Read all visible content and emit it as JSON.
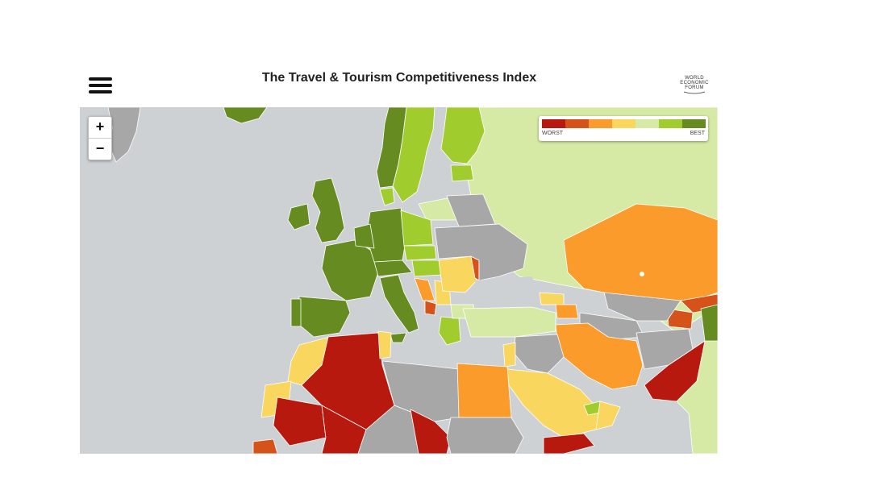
{
  "header": {
    "title": "The Travel & Tourism Competitiveness Index",
    "logo_lines": [
      "WORLD",
      "ECONOMIC",
      "FORUM"
    ]
  },
  "zoom": {
    "in_label": "+",
    "out_label": "−"
  },
  "legend": {
    "worst_label": "WORST",
    "best_label": "BEST",
    "colors": [
      "#b8190f",
      "#d5531a",
      "#fb9b2c",
      "#f9d75f",
      "#d6eaa5",
      "#a0cc2e",
      "#668b21"
    ]
  },
  "map": {
    "sea_color": "#cdd1d4",
    "no_data_color": "#a7a7a7",
    "non_ranked_land_color": "#d6eaa5"
  }
}
